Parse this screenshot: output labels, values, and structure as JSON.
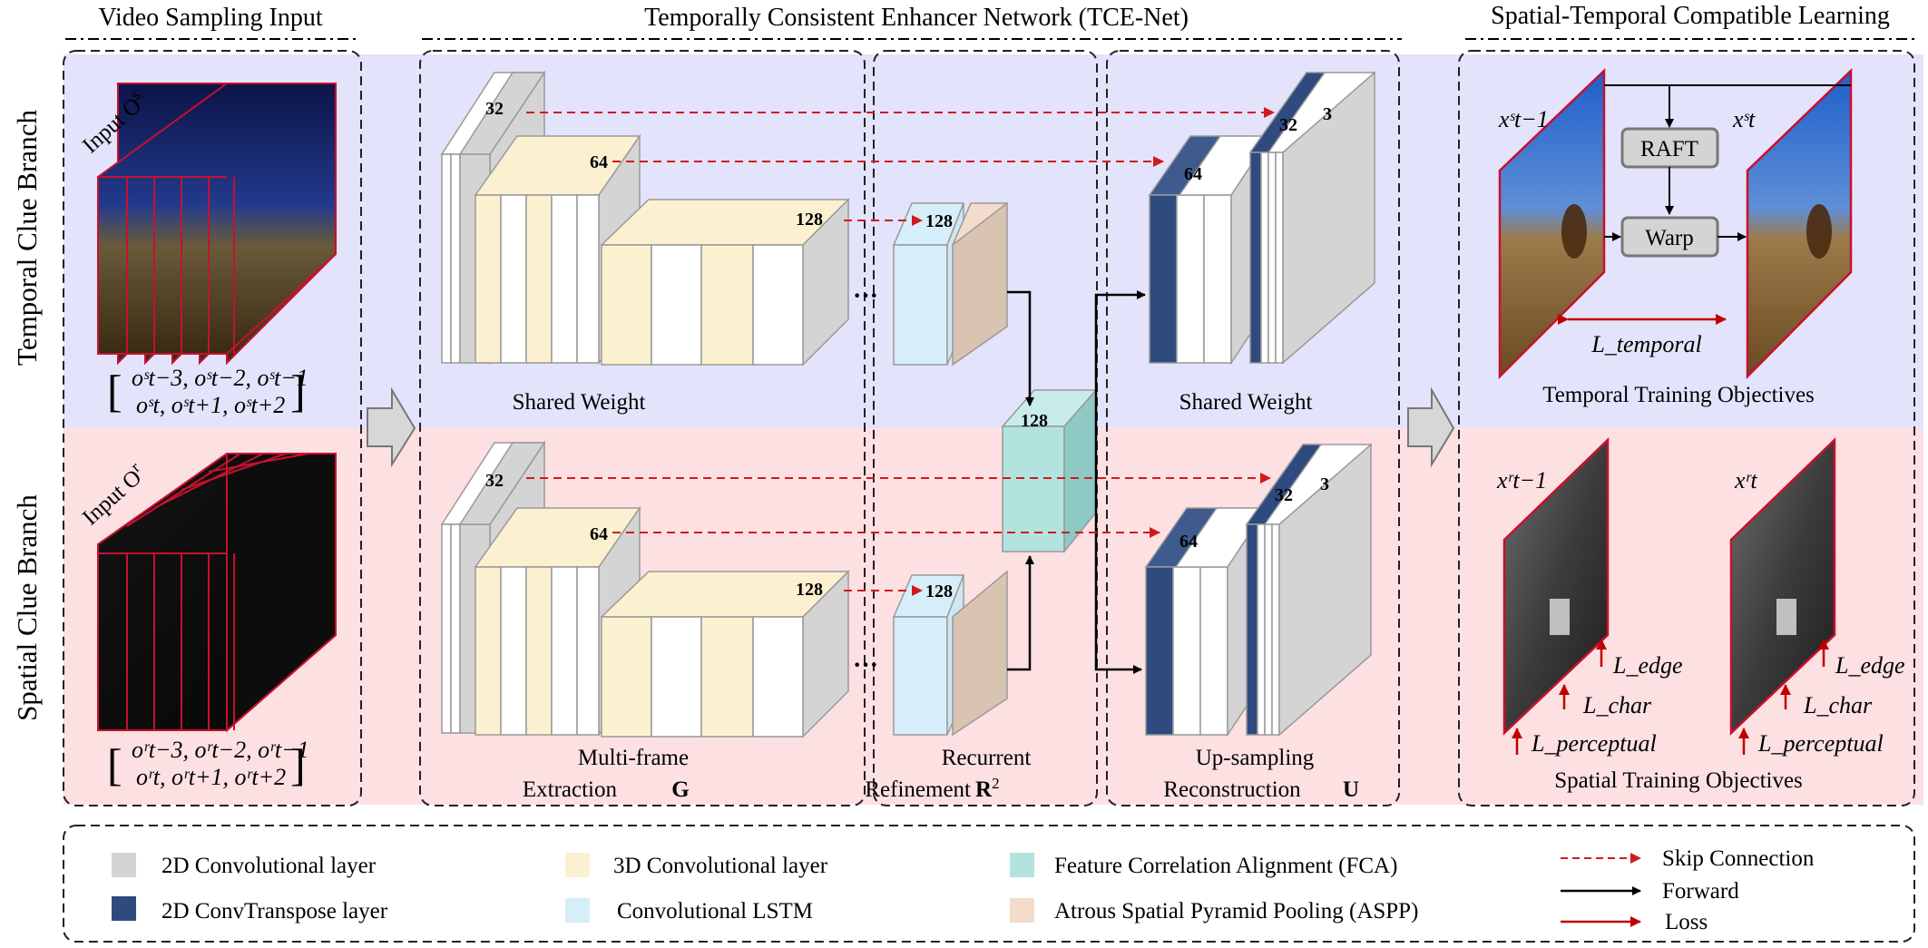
{
  "headers": {
    "video_sampling": "Video Sampling Input",
    "tce_net": "Temporally Consistent Enhancer Network (TCE-Net)",
    "stc_learning": "Spatial-Temporal Compatible Learning"
  },
  "branches": {
    "temporal": "Temporal Clue Branch",
    "spatial": "Spatial Clue Branch"
  },
  "inputs": {
    "temporal_prefix": "Input O",
    "temporal_sup": "s",
    "spatial_prefix": "Input O",
    "spatial_sup": "r",
    "temporal_seq_line1": "oˢt−3, oˢt−2, oˢt−1",
    "temporal_seq_line2": "oˢt, oˢt+1, oˢt+2",
    "spatial_seq_line1": "oʳt−3, oʳt−2, oʳt−1",
    "spatial_seq_line2": "oʳt, oʳt+1, oʳt+2"
  },
  "network": {
    "shared_weight_left": "Shared Weight",
    "shared_weight_right": "Shared Weight",
    "g_line1": "Multi-frame",
    "g_line2": "Extraction",
    "g_symbol": "G",
    "r_line1": "Recurrent",
    "r_line2": "Refinement",
    "r_symbol": "R",
    "r_sup": "2",
    "u_line1": "Up-sampling",
    "u_line2": "Reconstruction",
    "u_symbol": "U",
    "ch32": "32",
    "ch64": "64",
    "ch128": "128",
    "ch3": "3",
    "ellipsis": "···"
  },
  "objectives": {
    "raft": "RAFT",
    "warp": "Warp",
    "x_prev_s": "xˢt−1",
    "x_cur_s": "xˢt",
    "x_prev_r": "xʳt−1",
    "x_cur_r": "xʳt",
    "l_temporal": "L_temporal",
    "temporal_title": "Temporal Training Objectives",
    "spatial_title": "Spatial Training Objectives",
    "l_edge": "L_edge",
    "l_char": "L_char",
    "l_perceptual": "L_perceptual"
  },
  "legend": {
    "conv2d": "2D Convolutional layer",
    "conv3d": "3D Convolutional layer",
    "fca": "Feature Correlation Alignment (FCA)",
    "skip": "Skip Connection",
    "convT": "2D ConvTranspose layer",
    "lstm": "Convolutional LSTM",
    "aspp": "Atrous Spatial Pyramid Pooling (ASPP)",
    "forward": "Forward",
    "loss": "Loss"
  },
  "colors": {
    "temporal_bg": "#e3e3fb",
    "spatial_bg": "#fce0e2",
    "conv2d": "#d4d4d4",
    "conv3d": "#fbf0d0",
    "convT": "#2e4a7f",
    "lstm": "#d6eefa",
    "fca": "#b3e3df",
    "aspp": "#f3dccb",
    "skip": "#d11a1a",
    "forward": "#000000",
    "loss": "#c00000"
  }
}
